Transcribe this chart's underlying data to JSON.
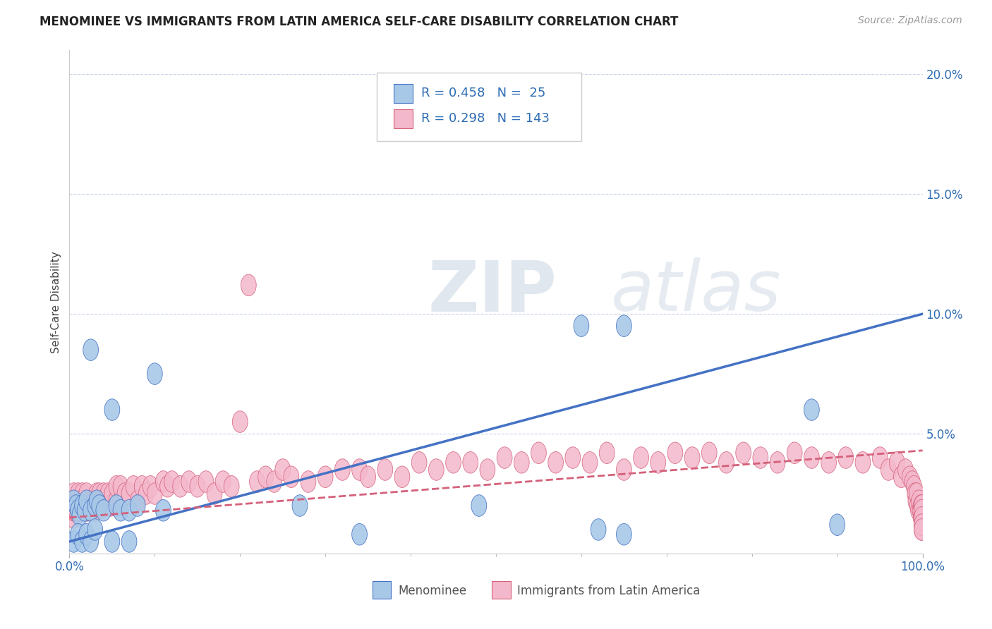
{
  "title": "MENOMINEE VS IMMIGRANTS FROM LATIN AMERICA SELF-CARE DISABILITY CORRELATION CHART",
  "source": "Source: ZipAtlas.com",
  "ylabel": "Self-Care Disability",
  "watermark_bold": "ZIP",
  "watermark_light": "atlas",
  "xlim": [
    0,
    1
  ],
  "ylim": [
    0,
    0.21
  ],
  "ytick_positions": [
    0.05,
    0.1,
    0.15,
    0.2
  ],
  "ytick_labels": [
    "5.0%",
    "10.0%",
    "15.0%",
    "20.0%"
  ],
  "series1_name": "Menominee",
  "series1_color": "#a8c8e8",
  "series1_R": 0.458,
  "series1_N": 25,
  "series1_line_color": "#4472c4",
  "series2_name": "Immigrants from Latin America",
  "series2_color": "#f4b8cc",
  "series2_R": 0.298,
  "series2_N": 143,
  "series2_line_color": "#d4607a",
  "legend_R_color": "#2e6db4",
  "background_color": "#ffffff",
  "grid_color": "#c8d4e8",
  "line1_x0": 0.0,
  "line1_y0": 0.005,
  "line1_x1": 1.0,
  "line1_y1": 0.1,
  "line2_x0": 0.0,
  "line2_y0": 0.015,
  "line2_x1": 1.0,
  "line2_y1": 0.043,
  "men_x": [
    0.005,
    0.008,
    0.01,
    0.012,
    0.015,
    0.018,
    0.02,
    0.025,
    0.025,
    0.03,
    0.032,
    0.035,
    0.04,
    0.05,
    0.055,
    0.06,
    0.07,
    0.08,
    0.1,
    0.11,
    0.27,
    0.48,
    0.6,
    0.65,
    0.87
  ],
  "men_y": [
    0.022,
    0.02,
    0.018,
    0.016,
    0.02,
    0.018,
    0.022,
    0.085,
    0.018,
    0.02,
    0.022,
    0.02,
    0.018,
    0.06,
    0.02,
    0.018,
    0.018,
    0.02,
    0.075,
    0.018,
    0.02,
    0.02,
    0.095,
    0.095,
    0.06
  ],
  "men_below_x": [
    0.005,
    0.01,
    0.015,
    0.02,
    0.025,
    0.03,
    0.05,
    0.07,
    0.34,
    0.62,
    0.65,
    0.9
  ],
  "men_below_y": [
    0.005,
    0.008,
    0.005,
    0.008,
    0.005,
    0.01,
    0.005,
    0.005,
    0.008,
    0.01,
    0.008,
    0.012
  ],
  "imm_x": [
    0.005,
    0.005,
    0.005,
    0.005,
    0.005,
    0.005,
    0.005,
    0.007,
    0.007,
    0.008,
    0.008,
    0.009,
    0.009,
    0.01,
    0.01,
    0.01,
    0.01,
    0.012,
    0.012,
    0.013,
    0.013,
    0.015,
    0.015,
    0.015,
    0.016,
    0.018,
    0.018,
    0.02,
    0.02,
    0.02,
    0.022,
    0.022,
    0.025,
    0.025,
    0.025,
    0.028,
    0.028,
    0.03,
    0.03,
    0.032,
    0.032,
    0.035,
    0.035,
    0.038,
    0.04,
    0.04,
    0.042,
    0.045,
    0.045,
    0.048,
    0.05,
    0.055,
    0.055,
    0.06,
    0.06,
    0.065,
    0.07,
    0.075,
    0.08,
    0.085,
    0.09,
    0.095,
    0.1,
    0.11,
    0.115,
    0.12,
    0.13,
    0.14,
    0.15,
    0.16,
    0.17,
    0.18,
    0.19,
    0.2,
    0.21,
    0.22,
    0.23,
    0.24,
    0.25,
    0.26,
    0.28,
    0.3,
    0.32,
    0.34,
    0.35,
    0.37,
    0.39,
    0.41,
    0.43,
    0.45,
    0.47,
    0.49,
    0.51,
    0.53,
    0.55,
    0.57,
    0.59,
    0.61,
    0.63,
    0.65,
    0.67,
    0.69,
    0.71,
    0.73,
    0.75,
    0.77,
    0.79,
    0.81,
    0.83,
    0.85,
    0.87,
    0.89,
    0.91,
    0.93,
    0.95,
    0.96,
    0.97,
    0.975,
    0.98,
    0.985,
    0.988,
    0.99,
    0.991,
    0.992,
    0.993,
    0.994,
    0.995,
    0.996,
    0.997,
    0.998,
    0.998,
    0.999,
    0.999,
    0.999,
    0.999,
    0.999,
    0.999,
    0.999,
    0.999,
    0.999,
    0.999,
    0.999,
    0.999
  ],
  "imm_y": [
    0.02,
    0.022,
    0.018,
    0.025,
    0.015,
    0.02,
    0.018,
    0.022,
    0.018,
    0.02,
    0.018,
    0.022,
    0.02,
    0.02,
    0.022,
    0.018,
    0.025,
    0.022,
    0.018,
    0.02,
    0.022,
    0.02,
    0.018,
    0.025,
    0.022,
    0.02,
    0.018,
    0.022,
    0.018,
    0.025,
    0.02,
    0.018,
    0.022,
    0.02,
    0.018,
    0.022,
    0.02,
    0.022,
    0.018,
    0.025,
    0.02,
    0.025,
    0.022,
    0.02,
    0.025,
    0.022,
    0.02,
    0.022,
    0.025,
    0.02,
    0.025,
    0.022,
    0.028,
    0.022,
    0.028,
    0.025,
    0.025,
    0.028,
    0.022,
    0.028,
    0.025,
    0.028,
    0.025,
    0.03,
    0.028,
    0.03,
    0.028,
    0.03,
    0.028,
    0.03,
    0.025,
    0.03,
    0.028,
    0.055,
    0.112,
    0.03,
    0.032,
    0.03,
    0.035,
    0.032,
    0.03,
    0.032,
    0.035,
    0.035,
    0.032,
    0.035,
    0.032,
    0.038,
    0.035,
    0.038,
    0.038,
    0.035,
    0.04,
    0.038,
    0.042,
    0.038,
    0.04,
    0.038,
    0.042,
    0.035,
    0.04,
    0.038,
    0.042,
    0.04,
    0.042,
    0.038,
    0.042,
    0.04,
    0.038,
    0.042,
    0.04,
    0.038,
    0.04,
    0.038,
    0.04,
    0.035,
    0.038,
    0.032,
    0.035,
    0.032,
    0.03,
    0.028,
    0.025,
    0.022,
    0.025,
    0.02,
    0.018,
    0.022,
    0.018,
    0.02,
    0.015,
    0.018,
    0.012,
    0.015,
    0.01,
    0.018,
    0.012,
    0.015,
    0.02,
    0.018,
    0.015,
    0.012,
    0.01
  ]
}
